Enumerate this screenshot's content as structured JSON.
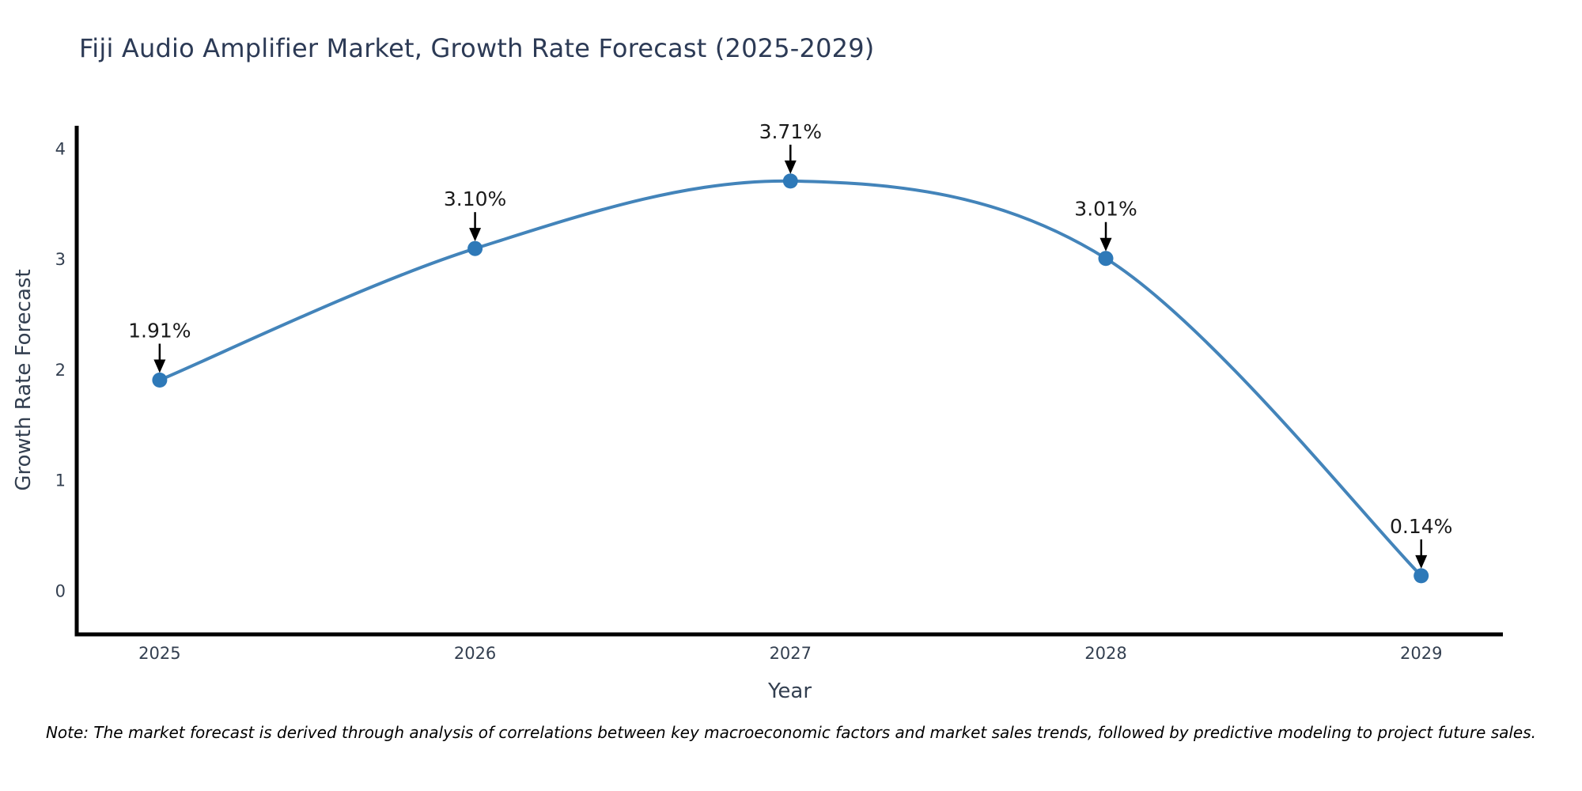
{
  "page": {
    "background": "#ffffff"
  },
  "header": {
    "title": "Fiji Audio Amplifier Market, Growth Rate Forecast (2025-2029)"
  },
  "footnote": {
    "text": "Note: The market forecast is derived through analysis of correlations between key macroeconomic factors and market sales trends, followed by predictive modeling to project future sales."
  },
  "chart_data": {
    "type": "line",
    "title": "Fiji Audio Amplifier Market, Growth Rate Forecast (2025-2029)",
    "xlabel": "Year",
    "ylabel": "Growth Rate Forecast",
    "categories": [
      "2025",
      "2026",
      "2027",
      "2028",
      "2029"
    ],
    "values": [
      1.91,
      3.1,
      3.71,
      3.01,
      0.14
    ],
    "point_labels": [
      "1.91%",
      "3.10%",
      "3.71%",
      "3.01%",
      "0.14%"
    ],
    "yticks": [
      0,
      1,
      2,
      3,
      4
    ],
    "ylim": [
      -0.39,
      4.21
    ],
    "xlim": [
      -0.263,
      4.259
    ],
    "grid": false,
    "legend": "none",
    "smooth": true,
    "annotation_style": "black-arrow-above-point",
    "colors": {
      "line": "#4384ba",
      "marker": "#2e79b8",
      "axis": "#000000",
      "tick_text": "#333f50",
      "axis_label_text": "#333f50",
      "title_text": "#2c3a55",
      "annotation_text": "#1a1a1a",
      "arrow": "#000000"
    }
  }
}
